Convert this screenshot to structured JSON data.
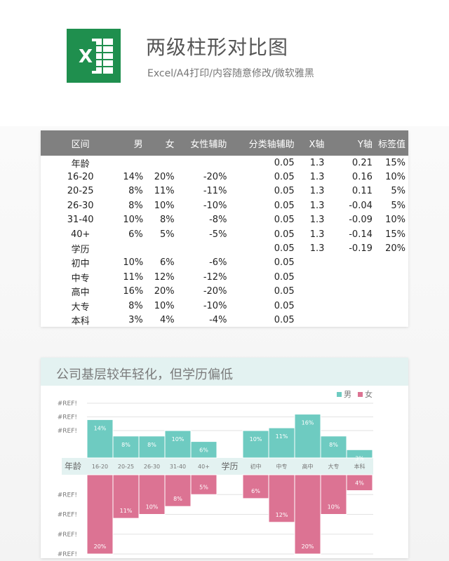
{
  "header": {
    "title": "两级柱形对比图",
    "subtitle": "Excel/A4打印/内容随意修改/微软雅黑"
  },
  "logo": {
    "icon": "excel-icon",
    "letter": "X",
    "color": "#1f8f4e"
  },
  "table": {
    "columns": [
      "区间",
      "男",
      "女",
      "女性辅助",
      "分类轴辅助",
      "X轴",
      "Y轴",
      "标签值"
    ],
    "rows": [
      [
        "年龄",
        "",
        "",
        "",
        "0.05",
        "1.3",
        "0.21",
        "15%"
      ],
      [
        "16-20",
        "14%",
        "20%",
        "-20%",
        "0.05",
        "1.3",
        "0.16",
        "10%"
      ],
      [
        "20-25",
        "8%",
        "11%",
        "-11%",
        "0.05",
        "1.3",
        "0.11",
        "5%"
      ],
      [
        "26-30",
        "8%",
        "10%",
        "-10%",
        "0.05",
        "1.3",
        "-0.04",
        "5%"
      ],
      [
        "31-40",
        "10%",
        "8%",
        "-8%",
        "0.05",
        "1.3",
        "-0.09",
        "10%"
      ],
      [
        "40+",
        "6%",
        "5%",
        "-5%",
        "0.05",
        "1.3",
        "-0.14",
        "15%"
      ],
      [
        "学历",
        "",
        "",
        "",
        "0.05",
        "1.3",
        "-0.19",
        "20%"
      ],
      [
        "初中",
        "10%",
        "6%",
        "-6%",
        "0.05",
        "",
        "",
        ""
      ],
      [
        "中专",
        "11%",
        "12%",
        "-12%",
        "0.05",
        "",
        "",
        ""
      ],
      [
        "高中",
        "16%",
        "20%",
        "-20%",
        "0.05",
        "",
        "",
        ""
      ],
      [
        "大专",
        "8%",
        "10%",
        "-10%",
        "0.05",
        "",
        "",
        ""
      ],
      [
        "本科",
        "3%",
        "4%",
        "-4%",
        "0.05",
        "",
        "",
        ""
      ]
    ]
  },
  "chart_data": {
    "type": "bar",
    "title": "公司基层较年轻化，但学历偏低",
    "categories": [
      "16-20",
      "20-25",
      "26-30",
      "31-40",
      "40+",
      "",
      "初中",
      "中专",
      "高中",
      "大专",
      "本科"
    ],
    "group_labels": [
      {
        "label": "年龄",
        "before_index": 0
      },
      {
        "label": "学历",
        "before_index": 5
      }
    ],
    "series": [
      {
        "name": "男",
        "values": [
          14,
          8,
          8,
          10,
          6,
          null,
          10,
          11,
          16,
          8,
          3
        ],
        "color": "#6ecbc1",
        "direction": "up"
      },
      {
        "name": "女",
        "values": [
          20,
          11,
          10,
          8,
          5,
          null,
          6,
          12,
          20,
          10,
          4
        ],
        "color": "#dc7393",
        "direction": "down"
      }
    ],
    "value_suffix": "%",
    "ylim": [
      0,
      20
    ],
    "y_tick_label": "#REF!",
    "upper_ticks": [
      20,
      15,
      10
    ],
    "lower_ticks": [
      5,
      10,
      15,
      20
    ],
    "legend_position": "top-right",
    "grid": true
  }
}
